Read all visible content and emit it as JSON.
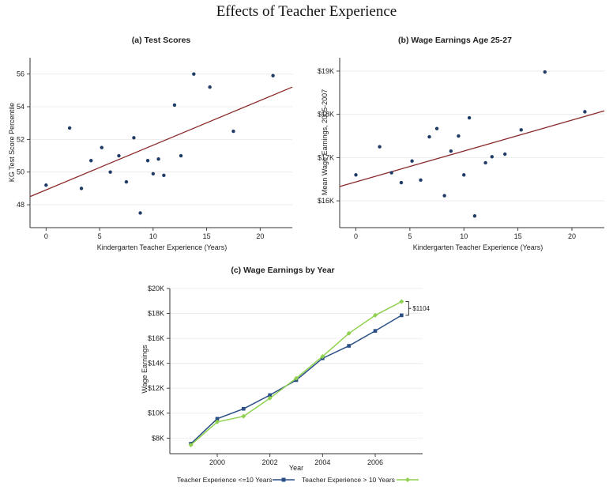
{
  "page_title": "Effects of Teacher Experience",
  "colors": {
    "scatter_point": "#1f3b66",
    "fit_line": "#8b2a2a",
    "series_low": "#2a4f86",
    "series_high": "#8fd14f",
    "axis": "#333333",
    "grid": "#e9e9e9"
  },
  "chart_data": [
    {
      "type": "scatter",
      "title": "(a) Test Scores",
      "xlabel": "Kindergarten Teacher Experience (Years)",
      "ylabel": "KG Test Score Percentile",
      "xlim": [
        -1.5,
        23
      ],
      "ylim": [
        46.6,
        57
      ],
      "xticks": [
        0,
        5,
        10,
        15,
        20
      ],
      "yticks": [
        48,
        50,
        52,
        54,
        56
      ],
      "ytick_labels": [
        "48",
        "50",
        "52",
        "54",
        "56"
      ],
      "grid": "horizontal",
      "points": [
        {
          "x": 0,
          "y": 49.2
        },
        {
          "x": 2.2,
          "y": 52.7
        },
        {
          "x": 3.3,
          "y": 49.0
        },
        {
          "x": 4.2,
          "y": 50.7
        },
        {
          "x": 5.2,
          "y": 51.5
        },
        {
          "x": 6.0,
          "y": 50.0
        },
        {
          "x": 6.8,
          "y": 51.0
        },
        {
          "x": 7.5,
          "y": 49.4
        },
        {
          "x": 8.2,
          "y": 52.1
        },
        {
          "x": 8.8,
          "y": 47.5
        },
        {
          "x": 9.5,
          "y": 50.7
        },
        {
          "x": 10.0,
          "y": 49.9
        },
        {
          "x": 10.5,
          "y": 50.8
        },
        {
          "x": 11.0,
          "y": 49.8
        },
        {
          "x": 12.0,
          "y": 54.1
        },
        {
          "x": 12.6,
          "y": 51.0
        },
        {
          "x": 13.8,
          "y": 56.0
        },
        {
          "x": 15.3,
          "y": 55.2
        },
        {
          "x": 17.5,
          "y": 52.5
        },
        {
          "x": 21.2,
          "y": 55.9
        }
      ],
      "fit_line": {
        "x": [
          -1.5,
          23
        ],
        "y": [
          48.5,
          55.2
        ]
      }
    },
    {
      "type": "scatter",
      "title": "(b) Wage Earnings Age 25-27",
      "xlabel": "Kindergarten Teacher Experience (Years)",
      "ylabel": "Mean Wage Earnings, 2005-2007",
      "xlim": [
        -1.5,
        23
      ],
      "ylim": [
        15380,
        19310
      ],
      "xticks": [
        0,
        5,
        10,
        15,
        20
      ],
      "yticks": [
        16000,
        17000,
        18000,
        19000
      ],
      "ytick_labels": [
        "$16K",
        "$17K",
        "$18K",
        "$19K"
      ],
      "grid": "horizontal",
      "points": [
        {
          "x": 0,
          "y": 16600
        },
        {
          "x": 2.2,
          "y": 17250
        },
        {
          "x": 3.3,
          "y": 16650
        },
        {
          "x": 4.2,
          "y": 16420
        },
        {
          "x": 5.2,
          "y": 16920
        },
        {
          "x": 6.0,
          "y": 16480
        },
        {
          "x": 6.8,
          "y": 17480
        },
        {
          "x": 7.5,
          "y": 17670
        },
        {
          "x": 8.2,
          "y": 16120
        },
        {
          "x": 8.8,
          "y": 17150
        },
        {
          "x": 9.5,
          "y": 17500
        },
        {
          "x": 10.0,
          "y": 16600
        },
        {
          "x": 10.5,
          "y": 17920
        },
        {
          "x": 11.0,
          "y": 15650
        },
        {
          "x": 12.0,
          "y": 16880
        },
        {
          "x": 12.6,
          "y": 17020
        },
        {
          "x": 13.8,
          "y": 17080
        },
        {
          "x": 15.3,
          "y": 17640
        },
        {
          "x": 17.5,
          "y": 18980
        },
        {
          "x": 21.2,
          "y": 18060
        }
      ],
      "fit_line": {
        "x": [
          -1.5,
          23
        ],
        "y": [
          16330,
          18080
        ]
      }
    },
    {
      "type": "line",
      "title": "(c) Wage Earnings by Year",
      "xlabel": "Year",
      "ylabel": "Wage Earnings",
      "xlim": [
        1998.2,
        2007.8
      ],
      "ylim": [
        6750,
        20000
      ],
      "xticks": [
        2000,
        2002,
        2004,
        2006
      ],
      "yticks": [
        8000,
        10000,
        12000,
        14000,
        16000,
        18000,
        20000
      ],
      "ytick_labels": [
        "$8K",
        "$10K",
        "$12K",
        "$14K",
        "$16K",
        "$18K",
        "$20K"
      ],
      "grid": "horizontal",
      "x": [
        1999,
        2000,
        2001,
        2002,
        2003,
        2004,
        2005,
        2006,
        2007
      ],
      "series": [
        {
          "name": "Teacher Experience <=10 Years",
          "marker": "square",
          "values": [
            7550,
            9550,
            10350,
            11450,
            12650,
            14400,
            15400,
            16600,
            17850
          ]
        },
        {
          "name": "Teacher Experience > 10 Years",
          "marker": "diamond",
          "values": [
            7450,
            9300,
            9750,
            11200,
            12800,
            14550,
            16400,
            17850,
            18950
          ]
        }
      ],
      "annotation": {
        "text": "$1104",
        "x": 2007,
        "y_from": 17850,
        "y_to": 18950
      },
      "legend": "bottom"
    }
  ]
}
